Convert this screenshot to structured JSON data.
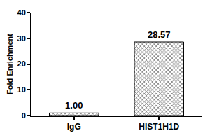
{
  "chart_data": {
    "type": "bar",
    "categories": [
      "IgG",
      "HIST1H1D"
    ],
    "values": [
      1,
      28.57
    ],
    "value_labels": [
      "1.00",
      "28.57"
    ],
    "data_labels": true,
    "y_label": "Fold Enrichment",
    "color": "#8c8c8c",
    "ylim": [
      0,
      40
    ],
    "yticks": [
      0,
      10,
      20,
      30,
      40
    ],
    "grid": false
  }
}
